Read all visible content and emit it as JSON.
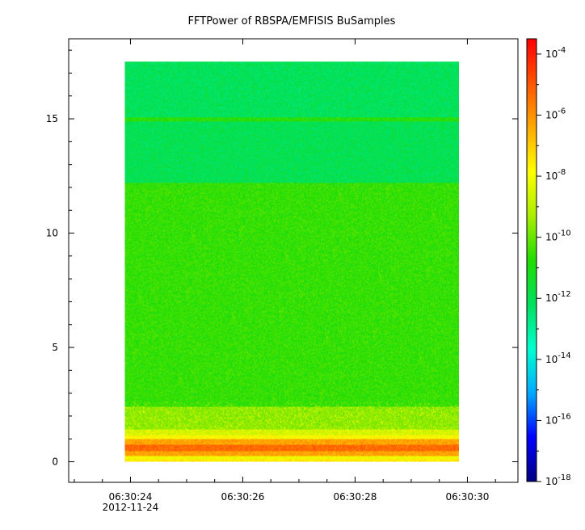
{
  "chart_data": {
    "type": "heatmap",
    "title": "FFTPower of RBSPA/EMFISIS  BuSamples",
    "xlabel": "",
    "ylabel": "",
    "x_ticks": [
      {
        "label": "06:30:24",
        "sublabel": "2012-11-24",
        "value_s": 24
      },
      {
        "label": "06:30:26",
        "sublabel": "",
        "value_s": 26
      },
      {
        "label": "06:30:28",
        "sublabel": "",
        "value_s": 28
      },
      {
        "label": "06:30:30",
        "sublabel": "",
        "value_s": 30
      }
    ],
    "xlim_s": [
      22.9,
      30.9
    ],
    "data_x_range_s": [
      23.9,
      29.85
    ],
    "y_ticks": [
      0,
      5,
      10,
      15
    ],
    "ylim": [
      -0.9,
      18.5
    ],
    "data_y_range": [
      0,
      17.5
    ],
    "colorbar": {
      "scale": "log",
      "range_exponent": [
        -18,
        -3.5
      ],
      "tick_exponents": [
        -4,
        -6,
        -8,
        -10,
        -12,
        -14,
        -16,
        -18
      ],
      "tick_base": "10",
      "colors": [
        "#00007f",
        "#0000ff",
        "#00aaff",
        "#00ffd0",
        "#00e060",
        "#22dd00",
        "#aaee00",
        "#ffff00",
        "#ffaa00",
        "#ff5500",
        "#ff0000"
      ]
    },
    "bands": [
      {
        "y": [
          0.0,
          0.1
        ],
        "log_power": -7.5
      },
      {
        "y": [
          0.1,
          0.25
        ],
        "log_power": -8.0
      },
      {
        "y": [
          0.25,
          0.45
        ],
        "log_power": -6.3
      },
      {
        "y": [
          0.45,
          0.75
        ],
        "log_power": -5.3
      },
      {
        "y": [
          0.75,
          1.0
        ],
        "log_power": -6.3
      },
      {
        "y": [
          1.0,
          1.15
        ],
        "log_power": -7.8
      },
      {
        "y": [
          1.15,
          1.4
        ],
        "log_power": -8.6
      },
      {
        "y": [
          1.4,
          2.4
        ],
        "log_power": -9.6
      },
      {
        "y": [
          2.4,
          12.2
        ],
        "log_power": -10.6
      },
      {
        "y": [
          12.2,
          14.9
        ],
        "log_power": -12.0
      },
      {
        "y": [
          14.9,
          15.05
        ],
        "log_power": -10.8
      },
      {
        "y": [
          15.05,
          17.5
        ],
        "log_power": -12.1
      }
    ]
  }
}
